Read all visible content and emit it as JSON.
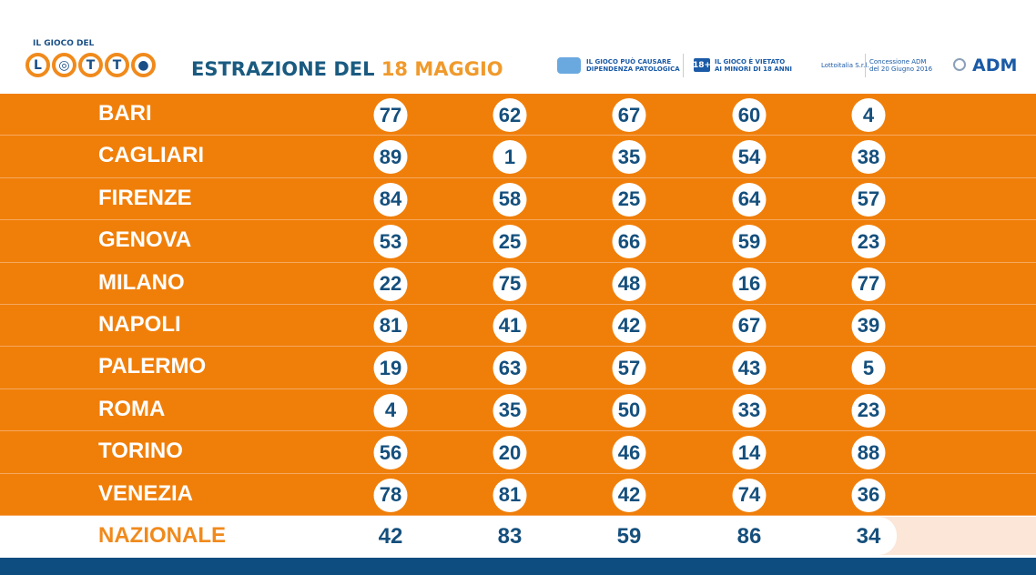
{
  "header": {
    "logo_top": "IL GIOCO DEL",
    "logo_letters": [
      "L",
      "◎",
      "T",
      "T",
      "●"
    ],
    "title_prefix": "ESTRAZIONE DEL",
    "title_date": "18 MAGGIO",
    "warning1_l1": "IL GIOCO PUÒ CAUSARE",
    "warning1_l2": "DIPENDENZA PATOLOGICA",
    "badge18": "18+",
    "warning2_l1": "IL GIOCO È VIETATO",
    "warning2_l2": "AI MINORI DI 18 ANNI",
    "operator": "Lottoitalia S.r.l.",
    "concession_l1": "Concessione ADM",
    "concession_l2": "del 20 Giugno 2016",
    "adm": "ADM"
  },
  "colors": {
    "orange": "#f07f0a",
    "blue": "#154f7c",
    "footer": "#0e4d80"
  },
  "rows": [
    {
      "city": "BARI",
      "numbers": [
        "77",
        "62",
        "67",
        "60",
        "4"
      ]
    },
    {
      "city": "CAGLIARI",
      "numbers": [
        "89",
        "1",
        "35",
        "54",
        "38"
      ]
    },
    {
      "city": "FIRENZE",
      "numbers": [
        "84",
        "58",
        "25",
        "64",
        "57"
      ]
    },
    {
      "city": "GENOVA",
      "numbers": [
        "53",
        "25",
        "66",
        "59",
        "23"
      ]
    },
    {
      "city": "MILANO",
      "numbers": [
        "22",
        "75",
        "48",
        "16",
        "77"
      ]
    },
    {
      "city": "NAPOLI",
      "numbers": [
        "81",
        "41",
        "42",
        "67",
        "39"
      ]
    },
    {
      "city": "PALERMO",
      "numbers": [
        "19",
        "63",
        "57",
        "43",
        "5"
      ]
    },
    {
      "city": "ROMA",
      "numbers": [
        "4",
        "35",
        "50",
        "33",
        "23"
      ]
    },
    {
      "city": "TORINO",
      "numbers": [
        "56",
        "20",
        "46",
        "14",
        "88"
      ]
    },
    {
      "city": "VENEZIA",
      "numbers": [
        "78",
        "81",
        "42",
        "74",
        "36"
      ]
    }
  ],
  "nazionale": {
    "city": "NAZIONALE",
    "numbers": [
      "42",
      "83",
      "59",
      "86",
      "34"
    ]
  }
}
